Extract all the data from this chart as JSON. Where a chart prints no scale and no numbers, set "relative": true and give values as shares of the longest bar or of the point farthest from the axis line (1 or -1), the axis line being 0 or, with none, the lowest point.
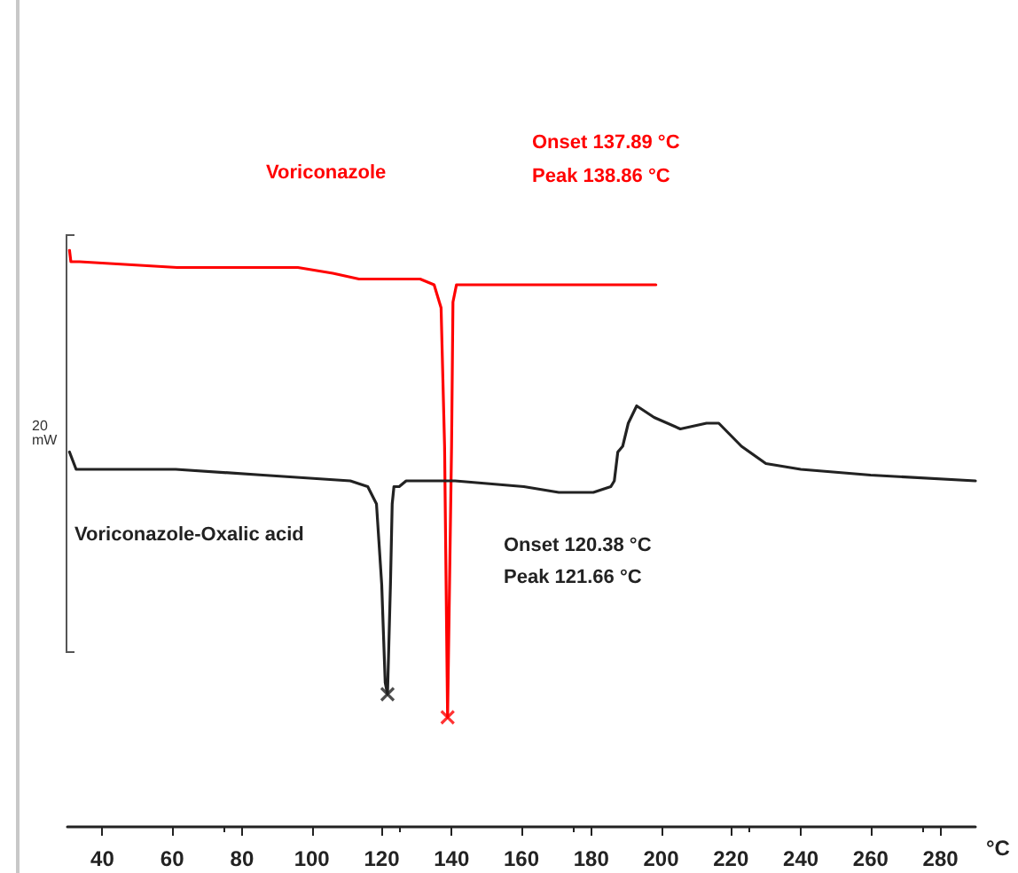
{
  "chart_data": {
    "type": "line",
    "relative": true,
    "xlabel": "°C",
    "xlim": [
      30,
      290
    ],
    "xticks": [
      40,
      60,
      80,
      100,
      120,
      140,
      160,
      180,
      200,
      220,
      240,
      260,
      280
    ],
    "grid": false,
    "legend": false,
    "marker": "none",
    "line_style": "solid",
    "annotations": [
      "Onset 137.89 °C",
      "Peak 138.86 °C",
      "Onset 120.38 °C",
      "Peak 121.66 °C",
      "20 mW"
    ],
    "series": [
      {
        "name": "Voriconazole",
        "color": "#ff0000",
        "x": [
          30.6,
          31,
          33.5,
          61.4,
          76,
          96,
          106,
          113.5,
          131,
          135,
          137,
          138,
          138.86,
          140,
          140.4,
          141.4,
          160.7,
          198.5
        ],
        "values": [
          1.0,
          0.98,
          0.98,
          0.97,
          0.97,
          0.97,
          0.96,
          0.95,
          0.95,
          0.94,
          0.9,
          0.66,
          0.19,
          0.66,
          0.91,
          0.94,
          0.94,
          0.94
        ]
      },
      {
        "name": "Voriconazole-Oxalic acid",
        "color": "#222222",
        "x": [
          30.6,
          32.5,
          34,
          61,
          86,
          111,
          116,
          118.5,
          120,
          121,
          121.66,
          122.5,
          123,
          123.5,
          125,
          127,
          141,
          160.7,
          170.7,
          180.6,
          185.6,
          186.6,
          187.6,
          189,
          190.6,
          193,
          198,
          205.5,
          213,
          216.5,
          223,
          230,
          240,
          260,
          290
        ],
        "values": [
          0.65,
          0.62,
          0.62,
          0.62,
          0.61,
          0.6,
          0.59,
          0.56,
          0.42,
          0.25,
          0.23,
          0.42,
          0.56,
          0.59,
          0.59,
          0.6,
          0.6,
          0.59,
          0.58,
          0.58,
          0.59,
          0.6,
          0.65,
          0.66,
          0.7,
          0.73,
          0.71,
          0.69,
          0.7,
          0.7,
          0.66,
          0.63,
          0.62,
          0.61,
          0.6
        ]
      },
      {
        "type": "scatter",
        "marker": "cross",
        "color": "#222222",
        "x": [
          121.66
        ],
        "values": [
          0.23
        ]
      },
      {
        "type": "scatter",
        "marker": "cross",
        "color": "#ff0000",
        "x": [
          138.86
        ],
        "values": [
          0.19
        ]
      }
    ]
  }
}
